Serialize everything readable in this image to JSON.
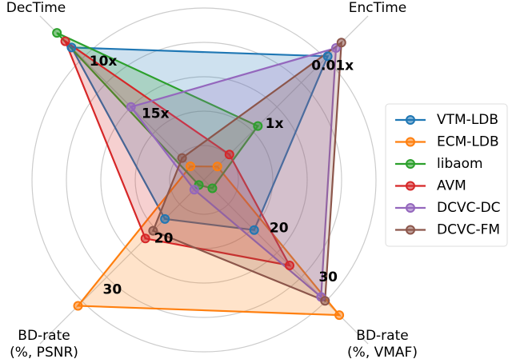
{
  "chart_data": {
    "type": "radar",
    "axes": [
      {
        "label": [
          "DecTime"
        ],
        "lim": [
          20.5,
          6.4
        ],
        "ticks": [
          {
            "value": 10,
            "label": "10x"
          },
          {
            "value": 15,
            "label": "15x"
          }
        ]
      },
      {
        "label": [
          "EncTime"
        ],
        "lim": [
          150,
          0.0013
        ],
        "log": true,
        "ticks": [
          {
            "value": 0.01,
            "label": "0.01x"
          },
          {
            "value": 1,
            "label": "1x"
          }
        ]
      },
      {
        "label": [
          "BD-rate",
          "(%, VMAF)"
        ],
        "lim": [
          7.2,
          37.1
        ],
        "ticks": [
          20,
          30
        ]
      },
      {
        "label": [
          "BD-rate",
          "(%, PSNR)"
        ],
        "lim": [
          10.3,
          38.9
        ],
        "ticks": [
          20,
          30
        ]
      }
    ],
    "series": [
      {
        "name": "VTM-LDB",
        "color": "#1f77b4",
        "values": [
          7.8,
          0.0083,
          17.4,
          17.9
        ]
      },
      {
        "name": "ECM-LDB",
        "color": "#ff7f0e",
        "values": [
          19.2,
          52,
          34.7,
          34.8
        ]
      },
      {
        "name": "libaom",
        "color": "#2ca02c",
        "values": [
          6.4,
          2.1,
          8.9,
          11.3
        ]
      },
      {
        "name": "AVM",
        "color": "#d62728",
        "values": [
          7.2,
          20,
          24.6,
          21.7
        ]
      },
      {
        "name": "DCVC-DC",
        "color": "#9467bd",
        "values": [
          13.5,
          0.0043,
          31.0,
          12.2
        ]
      },
      {
        "name": "DCVC-FM",
        "color": "#8c564b",
        "values": [
          18.4,
          0.0028,
          31.8,
          20.2
        ]
      }
    ]
  }
}
